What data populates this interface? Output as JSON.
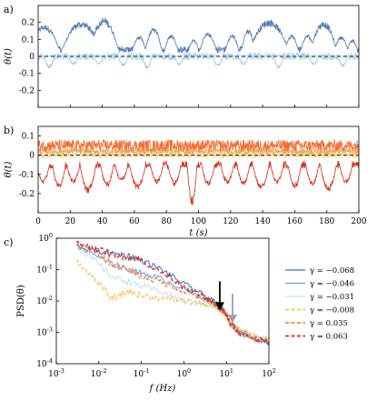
{
  "chart_data": [
    {
      "panel_label": "a)",
      "type": "line",
      "ylabel": "θ(t)",
      "yticks": [
        "0.2",
        "0.1",
        "0",
        "-0.1",
        "-0.2"
      ],
      "ylim": [
        -0.3,
        0.3
      ],
      "xlim": [
        0,
        200
      ],
      "reference_line": {
        "y": 0,
        "style": "dashed"
      },
      "series": [
        {
          "color": "#4e79b6",
          "baseline": 0.04,
          "spread": 0.02,
          "bursts": [
            [
              4,
              9,
              0.19
            ],
            [
              19,
              4,
              0.1
            ],
            [
              27,
              12,
              0.21
            ],
            [
              41,
              9,
              0.23
            ],
            [
              63,
              4,
              0.12
            ],
            [
              72,
              5,
              0.17
            ],
            [
              83,
              4,
              0.13
            ],
            [
              97,
              3,
              0.1
            ],
            [
              106,
              5,
              0.14
            ],
            [
              121,
              4,
              0.13
            ],
            [
              131,
              4,
              0.16
            ],
            [
              144,
              12,
              0.22
            ],
            [
              158,
              4,
              0.13
            ],
            [
              168,
              4,
              0.13
            ],
            [
              178,
              8,
              0.21
            ],
            [
              189,
              4,
              0.12
            ],
            [
              196,
              3,
              0.1
            ]
          ]
        },
        {
          "color": "#8ec3e6",
          "baseline": 0.0,
          "spread": 0.02,
          "dips": [
            [
              7,
              3,
              -0.07
            ],
            [
              22,
              3,
              -0.05
            ],
            [
              38,
              3,
              -0.05
            ],
            [
              53,
              3,
              -0.06
            ],
            [
              68,
              3,
              -0.07
            ],
            [
              88,
              3,
              -0.05
            ],
            [
              112,
              3,
              -0.06
            ],
            [
              128,
              3,
              -0.05
            ],
            [
              150,
              3,
              -0.07
            ],
            [
              172,
              3,
              -0.05
            ],
            [
              190,
              3,
              -0.06
            ]
          ]
        },
        {
          "color": "#cfe6f3",
          "baseline": 0.0,
          "spread": 0.015
        }
      ]
    },
    {
      "panel_label": "b)",
      "type": "line",
      "ylabel": "θ(t)",
      "yticks": [
        "0.1",
        "0",
        "-0.1",
        "-0.2"
      ],
      "ylim": [
        -0.3,
        0.15
      ],
      "xlim": [
        0,
        200
      ],
      "xlabel": "t (s)",
      "xticks": [
        "0",
        "20",
        "40",
        "60",
        "80",
        "100",
        "120",
        "140",
        "160",
        "180",
        "200"
      ],
      "reference_line": {
        "y": 0,
        "style": "dashed"
      },
      "series": [
        {
          "color": "#f7d27a",
          "baseline": 0.0,
          "spread": 0.012
        },
        {
          "color": "#f6a24a",
          "baseline": 0.02,
          "spread": 0.015
        },
        {
          "color": "#f36c2e",
          "baseline": 0.05,
          "spread": 0.03
        },
        {
          "color": "#d7301f",
          "baseline": -0.05,
          "spread": 0.02,
          "dips": [
            [
              3,
              4,
              -0.15
            ],
            [
              13,
              4,
              -0.18
            ],
            [
              22,
              4,
              -0.15
            ],
            [
              31,
              5,
              -0.2
            ],
            [
              43,
              4,
              -0.17
            ],
            [
              52,
              4,
              -0.14
            ],
            [
              62,
              5,
              -0.18
            ],
            [
              74,
              4,
              -0.15
            ],
            [
              85,
              4,
              -0.16
            ],
            [
              96,
              3,
              -0.27
            ],
            [
              106,
              4,
              -0.16
            ],
            [
              118,
              4,
              -0.15
            ],
            [
              128,
              4,
              -0.16
            ],
            [
              139,
              5,
              -0.18
            ],
            [
              149,
              4,
              -0.15
            ],
            [
              160,
              4,
              -0.18
            ],
            [
              171,
              4,
              -0.16
            ],
            [
              181,
              5,
              -0.19
            ],
            [
              192,
              4,
              -0.15
            ]
          ]
        }
      ]
    },
    {
      "panel_label": "c)",
      "type": "line",
      "xscale": "log",
      "yscale": "log",
      "xlabel": "f (Hz)",
      "ylabel": "PSD(θ)",
      "xlim": [
        0.001,
        100
      ],
      "ylim": [
        0.0001,
        1
      ],
      "xticks": [
        "10-3",
        "10-2",
        "10-1",
        "100",
        "101",
        "102"
      ],
      "yticks": [
        "100",
        "10-1",
        "10-2",
        "10-3",
        "10-4"
      ],
      "series": [
        {
          "name": "γ = −0.068",
          "color": "#3f6fb3",
          "dash": "solid",
          "points": [
            [
              0.003,
              0.55
            ],
            [
              0.008,
              0.4
            ],
            [
              0.02,
              0.33
            ],
            [
              0.05,
              0.28
            ],
            [
              0.1,
              0.2
            ],
            [
              0.3,
              0.1
            ],
            [
              1,
              0.035
            ],
            [
              3,
              0.015
            ],
            [
              6,
              0.008
            ],
            [
              8,
              0.006
            ],
            [
              10,
              0.004
            ],
            [
              12,
              0.0022
            ],
            [
              20,
              0.0012
            ],
            [
              50,
              0.0006
            ],
            [
              100,
              0.0005
            ]
          ]
        },
        {
          "name": "γ = −0.046",
          "color": "#6fa0d8",
          "dash": "solid",
          "points": [
            [
              0.003,
              0.6
            ],
            [
              0.008,
              0.3
            ],
            [
              0.02,
              0.15
            ],
            [
              0.05,
              0.1
            ],
            [
              0.1,
              0.08
            ],
            [
              0.3,
              0.05
            ],
            [
              1,
              0.025
            ],
            [
              3,
              0.012
            ],
            [
              6,
              0.007
            ],
            [
              8,
              0.005
            ],
            [
              10,
              0.0035
            ],
            [
              12,
              0.002
            ],
            [
              20,
              0.001
            ],
            [
              50,
              0.0006
            ],
            [
              100,
              0.0005
            ]
          ]
        },
        {
          "name": "γ = −0.031",
          "color": "#bfe0f2",
          "dash": "solid",
          "points": [
            [
              0.003,
              0.5
            ],
            [
              0.008,
              0.2
            ],
            [
              0.02,
              0.06
            ],
            [
              0.05,
              0.04
            ],
            [
              0.1,
              0.03
            ],
            [
              0.3,
              0.02
            ],
            [
              1,
              0.01
            ],
            [
              3,
              0.008
            ],
            [
              6,
              0.006
            ],
            [
              8,
              0.005
            ],
            [
              10,
              0.004
            ],
            [
              12,
              0.002
            ],
            [
              20,
              0.0012
            ],
            [
              50,
              0.0007
            ],
            [
              100,
              0.0006
            ]
          ]
        },
        {
          "name": "γ = −0.008",
          "color": "#f7c65a",
          "dash": "dashed",
          "points": [
            [
              0.003,
              0.2
            ],
            [
              0.008,
              0.05
            ],
            [
              0.02,
              0.012
            ],
            [
              0.05,
              0.02
            ],
            [
              0.1,
              0.015
            ],
            [
              0.3,
              0.012
            ],
            [
              1,
              0.01
            ],
            [
              3,
              0.008
            ],
            [
              6,
              0.006
            ],
            [
              8,
              0.005
            ],
            [
              10,
              0.004
            ],
            [
              12,
              0.002
            ],
            [
              20,
              0.0012
            ],
            [
              50,
              0.0007
            ],
            [
              100,
              0.0006
            ]
          ]
        },
        {
          "name": "γ = 0.035",
          "color": "#f08a4b",
          "dash": "dashed",
          "points": [
            [
              0.003,
              0.6
            ],
            [
              0.008,
              0.4
            ],
            [
              0.02,
              0.15
            ],
            [
              0.05,
              0.1
            ],
            [
              0.1,
              0.06
            ],
            [
              0.3,
              0.04
            ],
            [
              1,
              0.02
            ],
            [
              3,
              0.012
            ],
            [
              6,
              0.007
            ],
            [
              8,
              0.005
            ],
            [
              10,
              0.0035
            ],
            [
              12,
              0.002
            ],
            [
              20,
              0.001
            ],
            [
              50,
              0.0006
            ],
            [
              100,
              0.0005
            ]
          ]
        },
        {
          "name": "γ = 0.063",
          "color": "#d32f2f",
          "dash": "dashed",
          "points": [
            [
              0.003,
              0.7
            ],
            [
              0.008,
              0.5
            ],
            [
              0.02,
              0.3
            ],
            [
              0.05,
              0.25
            ],
            [
              0.1,
              0.2
            ],
            [
              0.3,
              0.08
            ],
            [
              1,
              0.03
            ],
            [
              3,
              0.013
            ],
            [
              6,
              0.007
            ],
            [
              8,
              0.005
            ],
            [
              10,
              0.0035
            ],
            [
              12,
              0.002
            ],
            [
              20,
              0.001
            ],
            [
              50,
              0.0006
            ],
            [
              100,
              0.0005
            ]
          ]
        }
      ],
      "arrows": [
        {
          "color": "#000000",
          "f": 7,
          "psd_tip": 0.005
        },
        {
          "color": "#a0a0a0",
          "f": 14,
          "psd_tip": 0.002
        }
      ]
    }
  ]
}
